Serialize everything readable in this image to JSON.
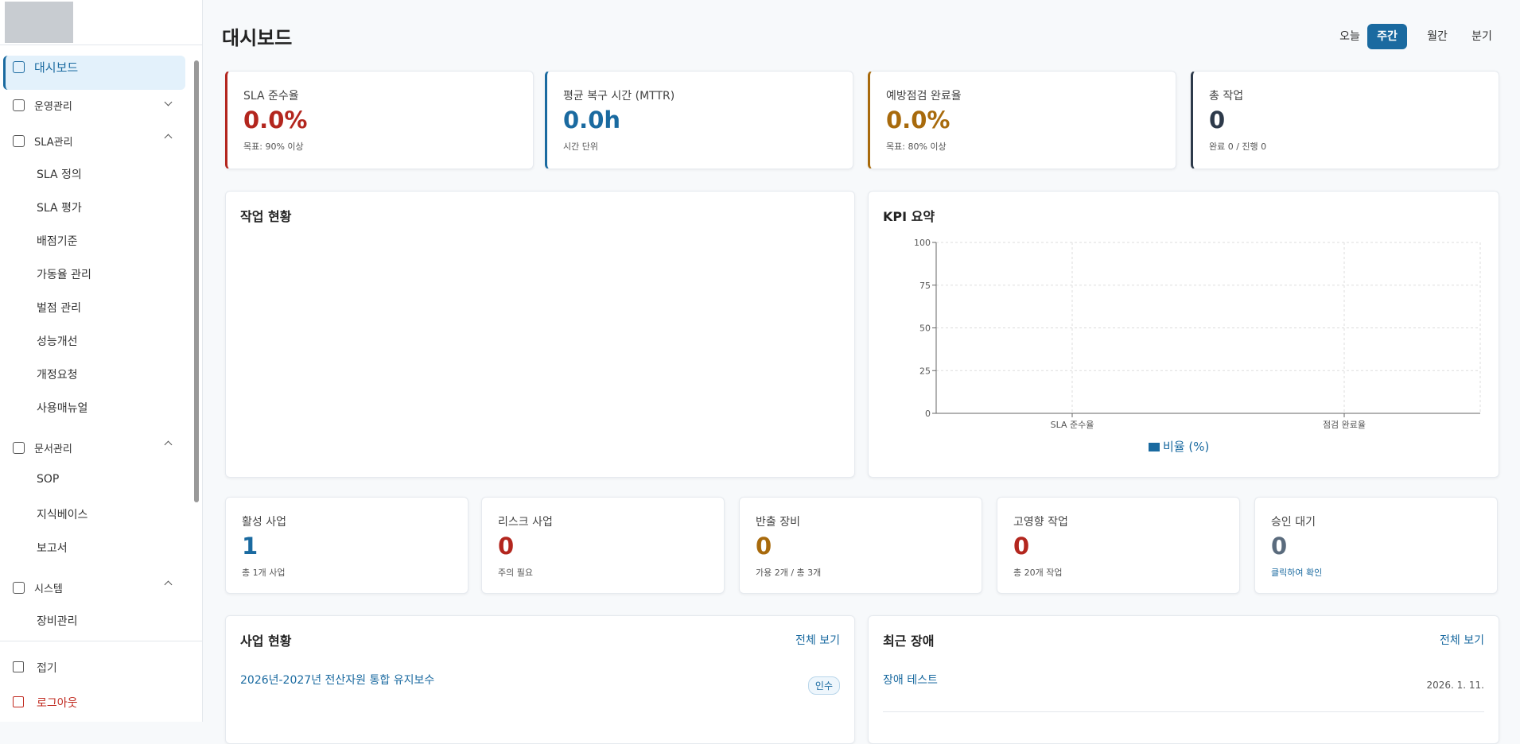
{
  "sidebar": {
    "nav": [
      {
        "label": "대시보드"
      },
      {
        "label": "운영관리"
      },
      {
        "label": "SLA관리",
        "children": [
          "SLA 정의",
          "SLA 평가",
          "배점기준",
          "가동율 관리",
          "벌점 관리",
          "성능개선",
          "개정요청",
          "사용매뉴얼"
        ]
      },
      {
        "label": "문서관리",
        "children": [
          "SOP",
          "지식베이스",
          "보고서"
        ]
      },
      {
        "label": "시스템",
        "children": [
          "장비관리"
        ]
      }
    ],
    "footer": [
      "접기",
      "로그아웃"
    ]
  },
  "header": {
    "title": "대시보드",
    "periods": [
      "오늘",
      "주간",
      "월간",
      "분기"
    ]
  },
  "top_cards": [
    {
      "label": "SLA 준수율",
      "value": "0.0%",
      "sub": "목표: 90% 이상"
    },
    {
      "label": "평균 복구 시간 (MTTR)",
      "value": "0.0h",
      "sub": "시간 단위"
    },
    {
      "label": "예방점검 완료율",
      "value": "0.0%",
      "sub": "목표: 80% 이상"
    },
    {
      "label": "총 작업",
      "value": "0",
      "sub": "완료 0 / 진행 0"
    }
  ],
  "work_panel": {
    "title": "작업 현황"
  },
  "chart_data": {
    "type": "bar",
    "title": "KPI 요약",
    "categories": [
      "SLA 준수율",
      "점검 완료율"
    ],
    "series": [
      {
        "name": "비율 (%)",
        "color": "#1a6aa0",
        "values": [
          0,
          0
        ]
      }
    ],
    "ylim": [
      0,
      100
    ],
    "yticks": [
      0,
      25,
      50,
      75,
      100
    ],
    "grid": true
  },
  "mid_cards": [
    {
      "label": "활성 사업",
      "value": "1",
      "sub": "총 1개 사업"
    },
    {
      "label": "리스크 사업",
      "value": "0",
      "sub": "주의 필요"
    },
    {
      "label": "반출 장비",
      "value": "0",
      "sub": "가용 2개 / 총 3개"
    },
    {
      "label": "고영향 작업",
      "value": "0",
      "sub": "총 20개 작업"
    },
    {
      "label": "승인 대기",
      "value": "0",
      "sub": "클릭하여 확인"
    }
  ],
  "projects": {
    "title": "사업 현황",
    "link": "전체 보기",
    "items": [
      {
        "name": "2026년-2027년 전산자원 통합 유지보수",
        "badge": "인수"
      }
    ]
  },
  "incidents": {
    "title": "최근 장애",
    "link": "전체 보기",
    "items": [
      {
        "name": "장애 테스트",
        "date": "2026. 1. 11."
      }
    ]
  }
}
